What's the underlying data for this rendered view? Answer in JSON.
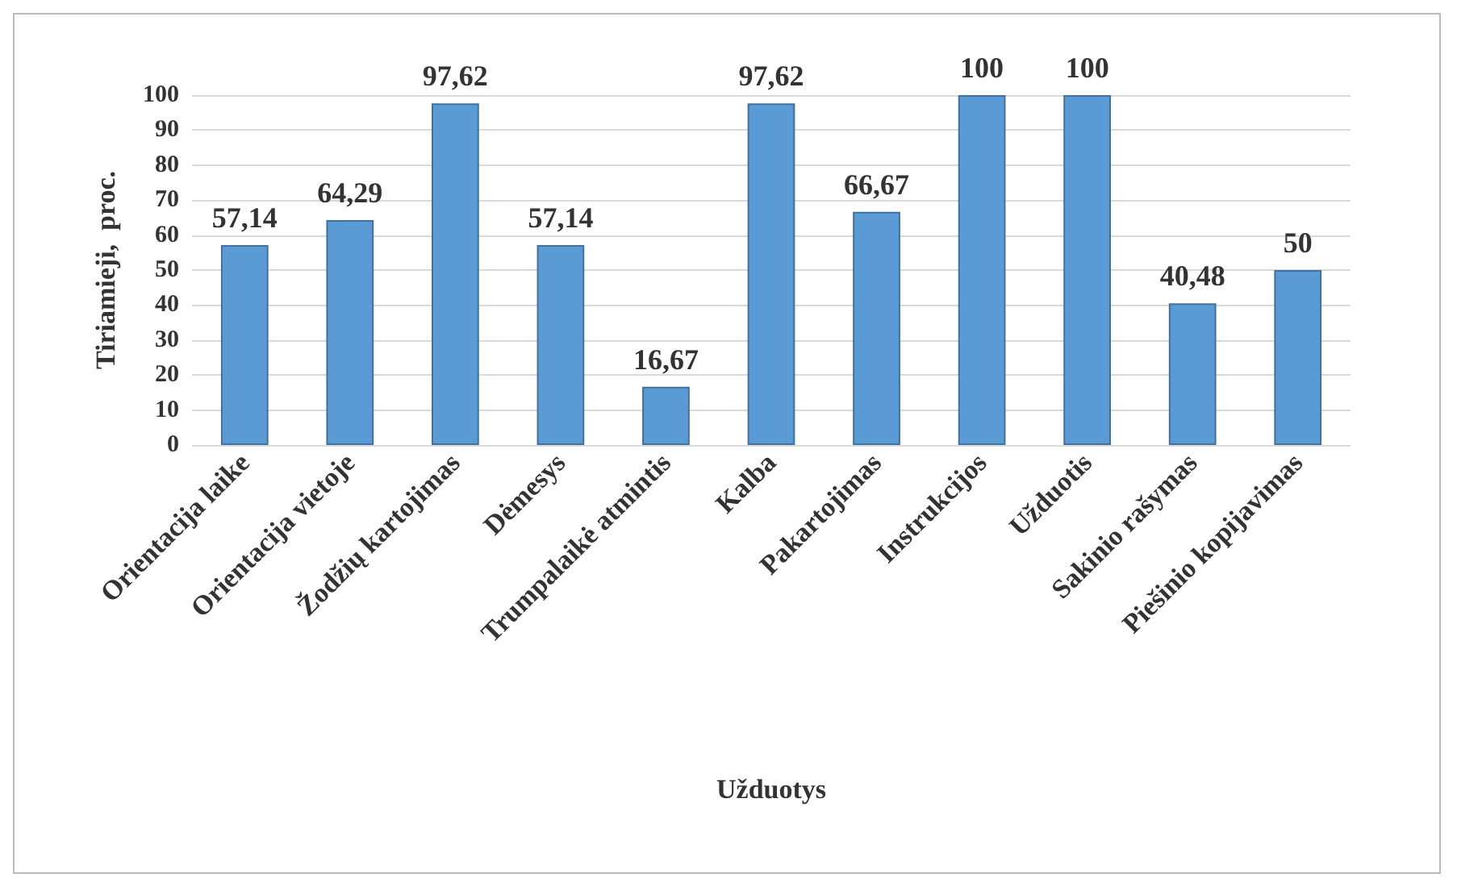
{
  "chart_data": {
    "type": "bar",
    "xlabel": "Užduotys",
    "ylabel": "Tiriamieji,  proc.",
    "categories": [
      "Orientacija laike",
      "Orientacija vietoje",
      "Žodžių kartojimas",
      "Dėmesys",
      "Trumpalaikė atmintis",
      "Kalba",
      "Pakartojimas",
      "Instrukcijos",
      "Užduotis",
      "Sakinio rašymas",
      "Piešinio kopijavimas"
    ],
    "values": [
      57.14,
      64.29,
      97.62,
      57.14,
      16.67,
      97.62,
      66.67,
      100,
      100,
      40.48,
      50
    ],
    "value_labels": [
      "57,14",
      "64,29",
      "97,62",
      "57,14",
      "16,67",
      "97,62",
      "66,67",
      "100",
      "100",
      "40,48",
      "50"
    ],
    "color": "#5b9bd5",
    "ylim": [
      0,
      100
    ],
    "yticks": [
      0,
      10,
      20,
      30,
      40,
      50,
      60,
      70,
      80,
      90,
      100
    ],
    "grid": "y"
  }
}
